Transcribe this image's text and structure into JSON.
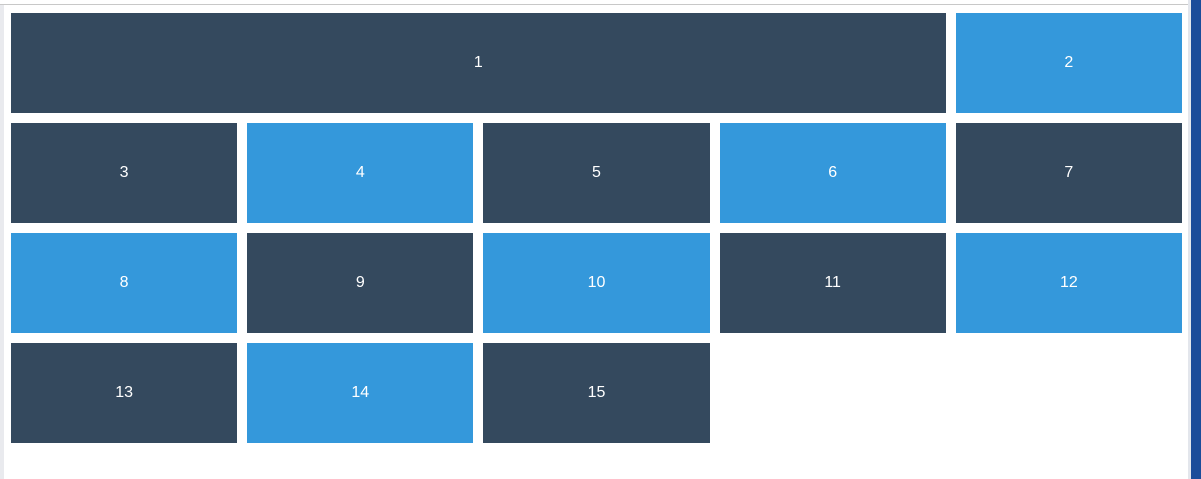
{
  "colors": {
    "dark_tile": "#34495e",
    "blue_tile": "#3498db",
    "tile_text": "#ffffff",
    "background": "#ffffff",
    "right_bar": "#1b4c9a"
  },
  "tiles": [
    {
      "label": "1",
      "color": "dark",
      "span": 4
    },
    {
      "label": "2",
      "color": "blue",
      "span": 1
    },
    {
      "label": "3",
      "color": "dark",
      "span": 1
    },
    {
      "label": "4",
      "color": "blue",
      "span": 1
    },
    {
      "label": "5",
      "color": "dark",
      "span": 1
    },
    {
      "label": "6",
      "color": "blue",
      "span": 1
    },
    {
      "label": "7",
      "color": "dark",
      "span": 1
    },
    {
      "label": "8",
      "color": "blue",
      "span": 1
    },
    {
      "label": "9",
      "color": "dark",
      "span": 1
    },
    {
      "label": "10",
      "color": "blue",
      "span": 1
    },
    {
      "label": "11",
      "color": "dark",
      "span": 1
    },
    {
      "label": "12",
      "color": "blue",
      "span": 1
    },
    {
      "label": "13",
      "color": "dark",
      "span": 1
    },
    {
      "label": "14",
      "color": "blue",
      "span": 1
    },
    {
      "label": "15",
      "color": "dark",
      "span": 1
    }
  ]
}
